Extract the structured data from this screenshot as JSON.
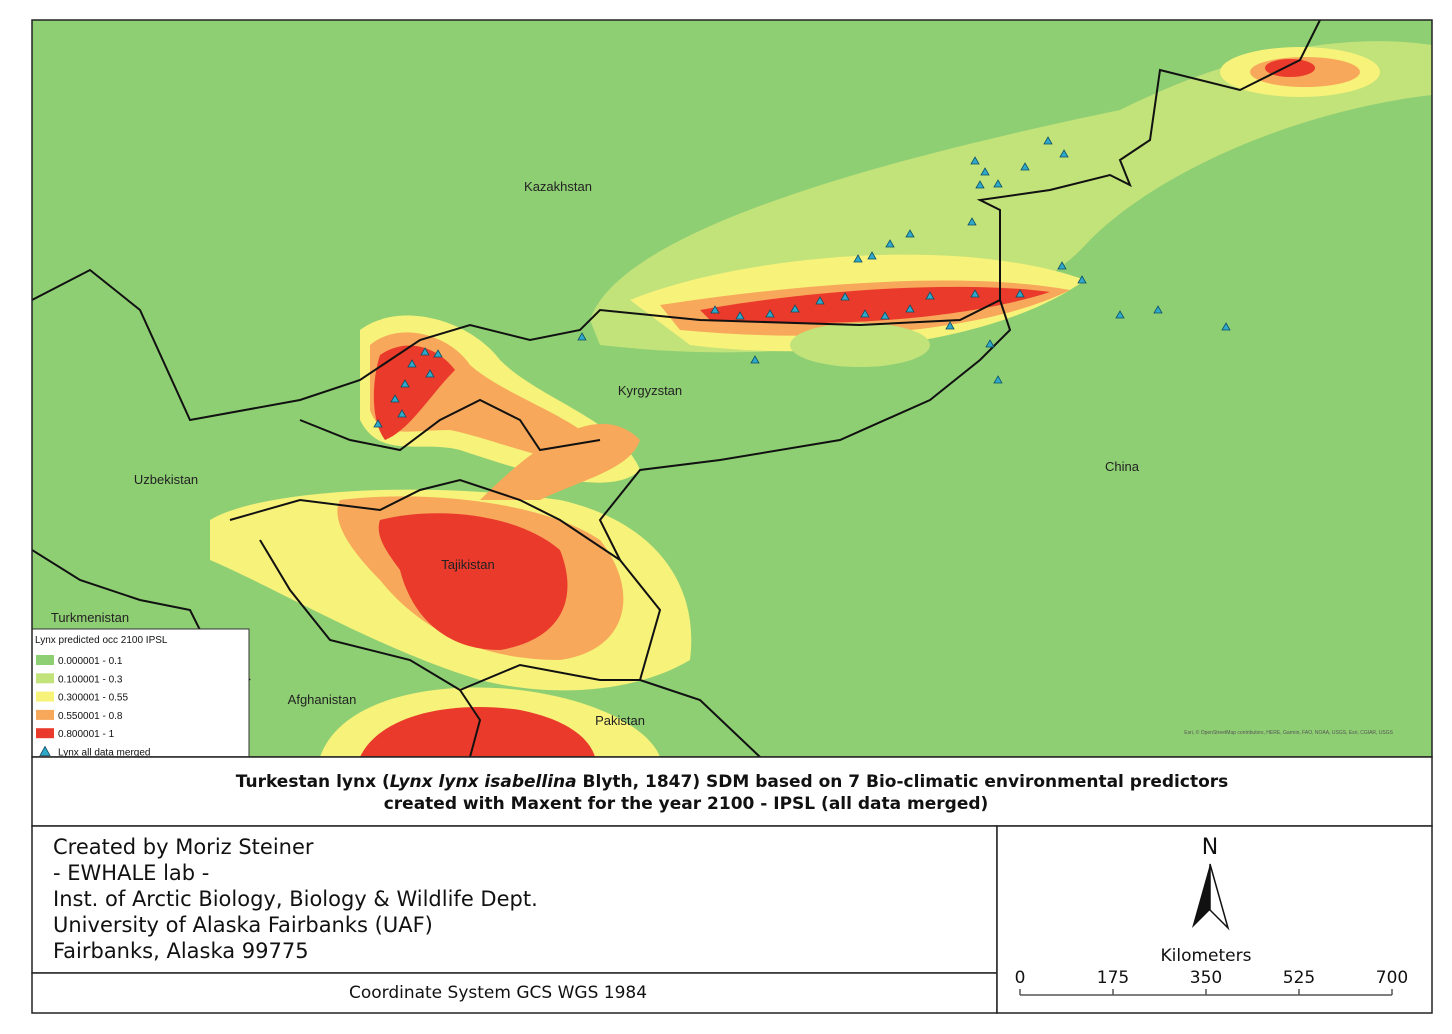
{
  "map": {
    "country_labels": [
      "Kazakhstan",
      "Kyrgyzstan",
      "Uzbekistan",
      "China",
      "Tajikistan",
      "Turkmenistan",
      "Afghanistan",
      "Pakistan"
    ],
    "attribution": "Esri, © OpenStreetMap contributors, HERE, Garmin, FAO, NOAA, USGS, Esri, CGIAR, USGS"
  },
  "legend": {
    "title": "Lynx predicted occ 2100 IPSL",
    "items": [
      {
        "label": "0.000001 - 0.1",
        "color": "#8fcf74"
      },
      {
        "label": "0.100001 - 0.3",
        "color": "#c2e27a"
      },
      {
        "label": "0.300001 - 0.55",
        "color": "#f7f27a"
      },
      {
        "label": "0.550001 - 0.8",
        "color": "#f7a85a"
      },
      {
        "label": "0.800001 - 1",
        "color": "#ea3a2c"
      }
    ],
    "points_label": "Lynx all data merged",
    "points_color": "#2ea9cc"
  },
  "title": {
    "line1": [
      "Turkestan lynx (",
      "Lynx lynx isabellina",
      " Blyth, 1847) SDM based on 7 Bio-climatic environmental predictors"
    ],
    "line2": "created with Maxent for the year 2100 - IPSL (all data merged)"
  },
  "credits": [
    "Created by Moriz Steiner",
    "- EWHALE lab -",
    "Inst. of Arctic Biology,  Biology & Wildlife Dept.",
    "University of Alaska Fairbanks (UAF)",
    "Fairbanks, Alaska 99775"
  ],
  "coordinate_system": "Coordinate System GCS WGS 1984",
  "north_arrow": "N",
  "scale_bar": {
    "unit": "Kilometers",
    "ticks": [
      0,
      175,
      350,
      525,
      700
    ]
  }
}
